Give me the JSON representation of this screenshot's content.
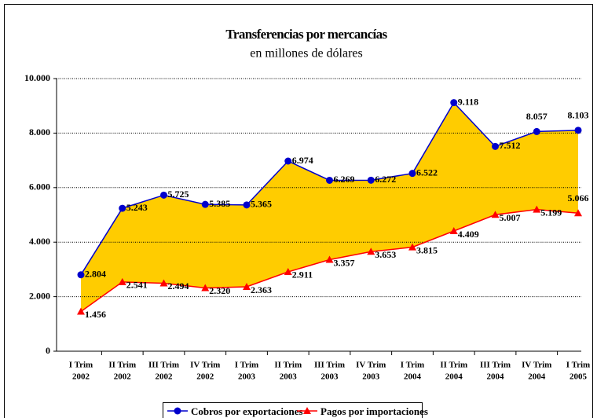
{
  "chart_data": {
    "type": "line",
    "title": "Transferencias por mercancías",
    "subtitle": "en millones de dólares",
    "categories": [
      [
        "I Trim",
        "2002"
      ],
      [
        "II Trim",
        "2002"
      ],
      [
        "III Trim",
        "2002"
      ],
      [
        "IV Trim",
        "2002"
      ],
      [
        "I Trim",
        "2003"
      ],
      [
        "II Trim",
        "2003"
      ],
      [
        "III Trim",
        "2003"
      ],
      [
        "IV Trim",
        "2003"
      ],
      [
        "I Trim",
        "2004"
      ],
      [
        "II Trim",
        "2004"
      ],
      [
        "III Trim",
        "2004"
      ],
      [
        "IV Trim",
        "2004"
      ],
      [
        "I Trim",
        "2005"
      ]
    ],
    "series": [
      {
        "name": "Cobros por exportaciones",
        "color": "#0000cc",
        "values": [
          2804,
          5243,
          5725,
          5385,
          5365,
          6974,
          6269,
          6272,
          6522,
          9118,
          7512,
          8057,
          8103
        ],
        "value_labels": [
          "2.804",
          "5.243",
          "5.725",
          "5.385",
          "5.365",
          "6.974",
          "6.269",
          "6.272",
          "6.522",
          "9.118",
          "7.512",
          "8.057",
          "8.103"
        ]
      },
      {
        "name": "Pagos por importaciones",
        "color": "#ff0000",
        "values": [
          1456,
          2541,
          2494,
          2320,
          2363,
          2911,
          3357,
          3653,
          3815,
          4409,
          5007,
          5199,
          5066
        ],
        "value_labels": [
          "1.456",
          "2.541",
          "2.494",
          "2.320",
          "2.363",
          "2.911",
          "3.357",
          "3.653",
          "3.815",
          "4.409",
          "5.007",
          "5.199",
          "5.066"
        ]
      }
    ],
    "fill_color": "#ffcc00",
    "ylim": [
      0,
      10000
    ],
    "yticks": [
      0,
      {
        "value": 2000,
        "label": "2.000"
      },
      {
        "value": 4000,
        "label": "4.000"
      },
      {
        "value": 6000,
        "label": "6.000"
      },
      {
        "value": 8000,
        "label": "8.000"
      },
      {
        "value": 10000,
        "label": "10.000"
      }
    ],
    "grid": true
  }
}
